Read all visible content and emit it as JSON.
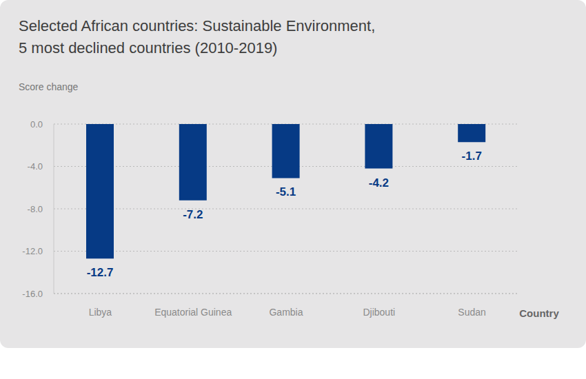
{
  "chart_data": {
    "type": "bar",
    "title": "Selected African countries: Sustainable Environment, 5 most declined countries (2010-2019)",
    "ylabel": "Score change",
    "xlabel": "Country",
    "categories": [
      "Libya",
      "Equatorial Guinea",
      "Gambia",
      "Djibouti",
      "Sudan"
    ],
    "values": [
      -12.7,
      -7.2,
      -5.1,
      -4.2,
      -1.7
    ],
    "color": "#063a85",
    "ylim": [
      -16,
      0
    ],
    "yticks": [
      {
        "value": -16,
        "label": "-16.0"
      },
      {
        "value": -12,
        "label": "-12.0"
      },
      {
        "value": -8,
        "label": "-8.0"
      },
      {
        "value": -4,
        "label": "-4.0"
      },
      {
        "value": 0,
        "label": "0.0"
      }
    ],
    "grid": true,
    "data_labels": true
  }
}
